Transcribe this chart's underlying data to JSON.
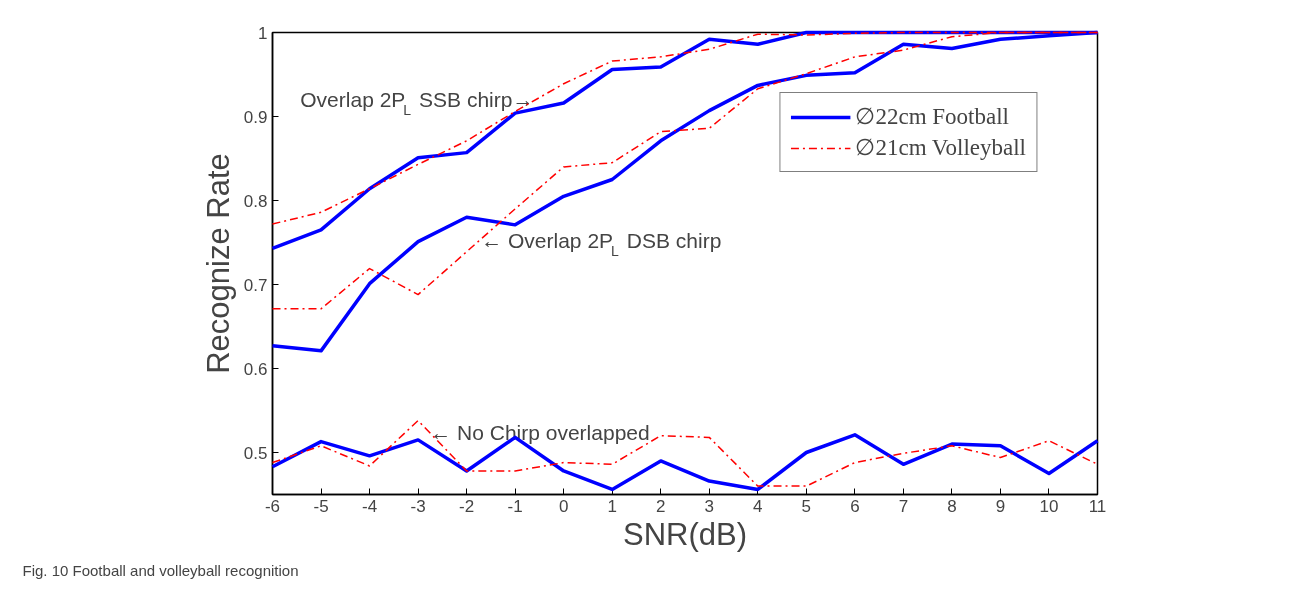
{
  "chart_data": {
    "type": "line",
    "xlabel": "SNR(dB)",
    "ylabel": "Recognize Rate",
    "x": [
      -6,
      -5,
      -4,
      -3,
      -2,
      -1,
      0,
      1,
      2,
      3,
      4,
      5,
      6,
      7,
      8,
      9,
      10,
      11
    ],
    "series": [
      {
        "name": "∅22cm Football",
        "color": "#0000ff",
        "line_style": "solid",
        "values": [
          0.743,
          0.765,
          0.814,
          0.851,
          0.857,
          0.904,
          0.916,
          0.956,
          0.959,
          0.992,
          0.986,
          1.0,
          1.0,
          1.0,
          1.0,
          1.0,
          1.0,
          1.0
        ]
      },
      {
        "name": "∅21cm Volleyball",
        "color": "#ff0000",
        "line_style": "dashdot",
        "values": [
          0.772,
          0.786,
          0.814,
          0.843,
          0.871,
          0.906,
          0.939,
          0.966,
          0.971,
          0.98,
          0.998,
          0.997,
          0.999,
          1.0,
          1.0,
          1.0,
          1.0,
          1.0
        ]
      },
      {
        "color": "#0000ff",
        "line_style": "solid",
        "values": [
          0.627,
          0.621,
          0.701,
          0.751,
          0.78,
          0.771,
          0.805,
          0.825,
          0.871,
          0.907,
          0.937,
          0.949,
          0.952,
          0.986,
          0.981,
          0.992,
          0.996,
          1.0
        ]
      },
      {
        "color": "#ff0000",
        "line_style": "dashdot",
        "values": [
          0.671,
          0.671,
          0.719,
          0.688,
          0.739,
          0.79,
          0.84,
          0.845,
          0.882,
          0.886,
          0.933,
          0.951,
          0.971,
          0.979,
          0.995,
          1.0,
          1.0,
          1.0
        ]
      },
      {
        "color": "#0000ff",
        "line_style": "solid",
        "values": [
          0.483,
          0.513,
          0.496,
          0.515,
          0.478,
          0.518,
          0.478,
          0.456,
          0.49,
          0.466,
          0.456,
          0.5,
          0.521,
          0.486,
          0.51,
          0.508,
          0.475,
          0.514
        ]
      },
      {
        "color": "#ff0000",
        "line_style": "dashdot",
        "values": [
          0.488,
          0.508,
          0.484,
          0.538,
          0.478,
          0.478,
          0.488,
          0.486,
          0.52,
          0.518,
          0.46,
          0.46,
          0.488,
          0.499,
          0.508,
          0.494,
          0.514,
          0.486
        ]
      }
    ],
    "xlim": [
      -6,
      11
    ],
    "xticks": [
      -6,
      -5,
      -4,
      -3,
      -2,
      -1,
      0,
      1,
      2,
      3,
      4,
      5,
      6,
      7,
      8,
      9,
      10,
      11
    ],
    "ylim": [
      0.45,
      1
    ],
    "yticks": [
      0.5,
      0.6,
      0.7,
      0.8,
      0.9,
      1
    ],
    "grid": false,
    "legend": "top right",
    "marker": "none",
    "annotations": [
      {
        "text": "Overlap 2P$_{L}$ SSB chirp→",
        "x": -0.6,
        "y": 0.92
      },
      {
        "text": "← Overlap 2P$_{L}$ DSB chirp",
        "x": -1.7,
        "y": 0.752
      },
      {
        "text": "← No Chirp overlapped",
        "x": -2.75,
        "y": 0.524
      },
      "Fig. 10 Football and volleyball recognition"
    ]
  }
}
